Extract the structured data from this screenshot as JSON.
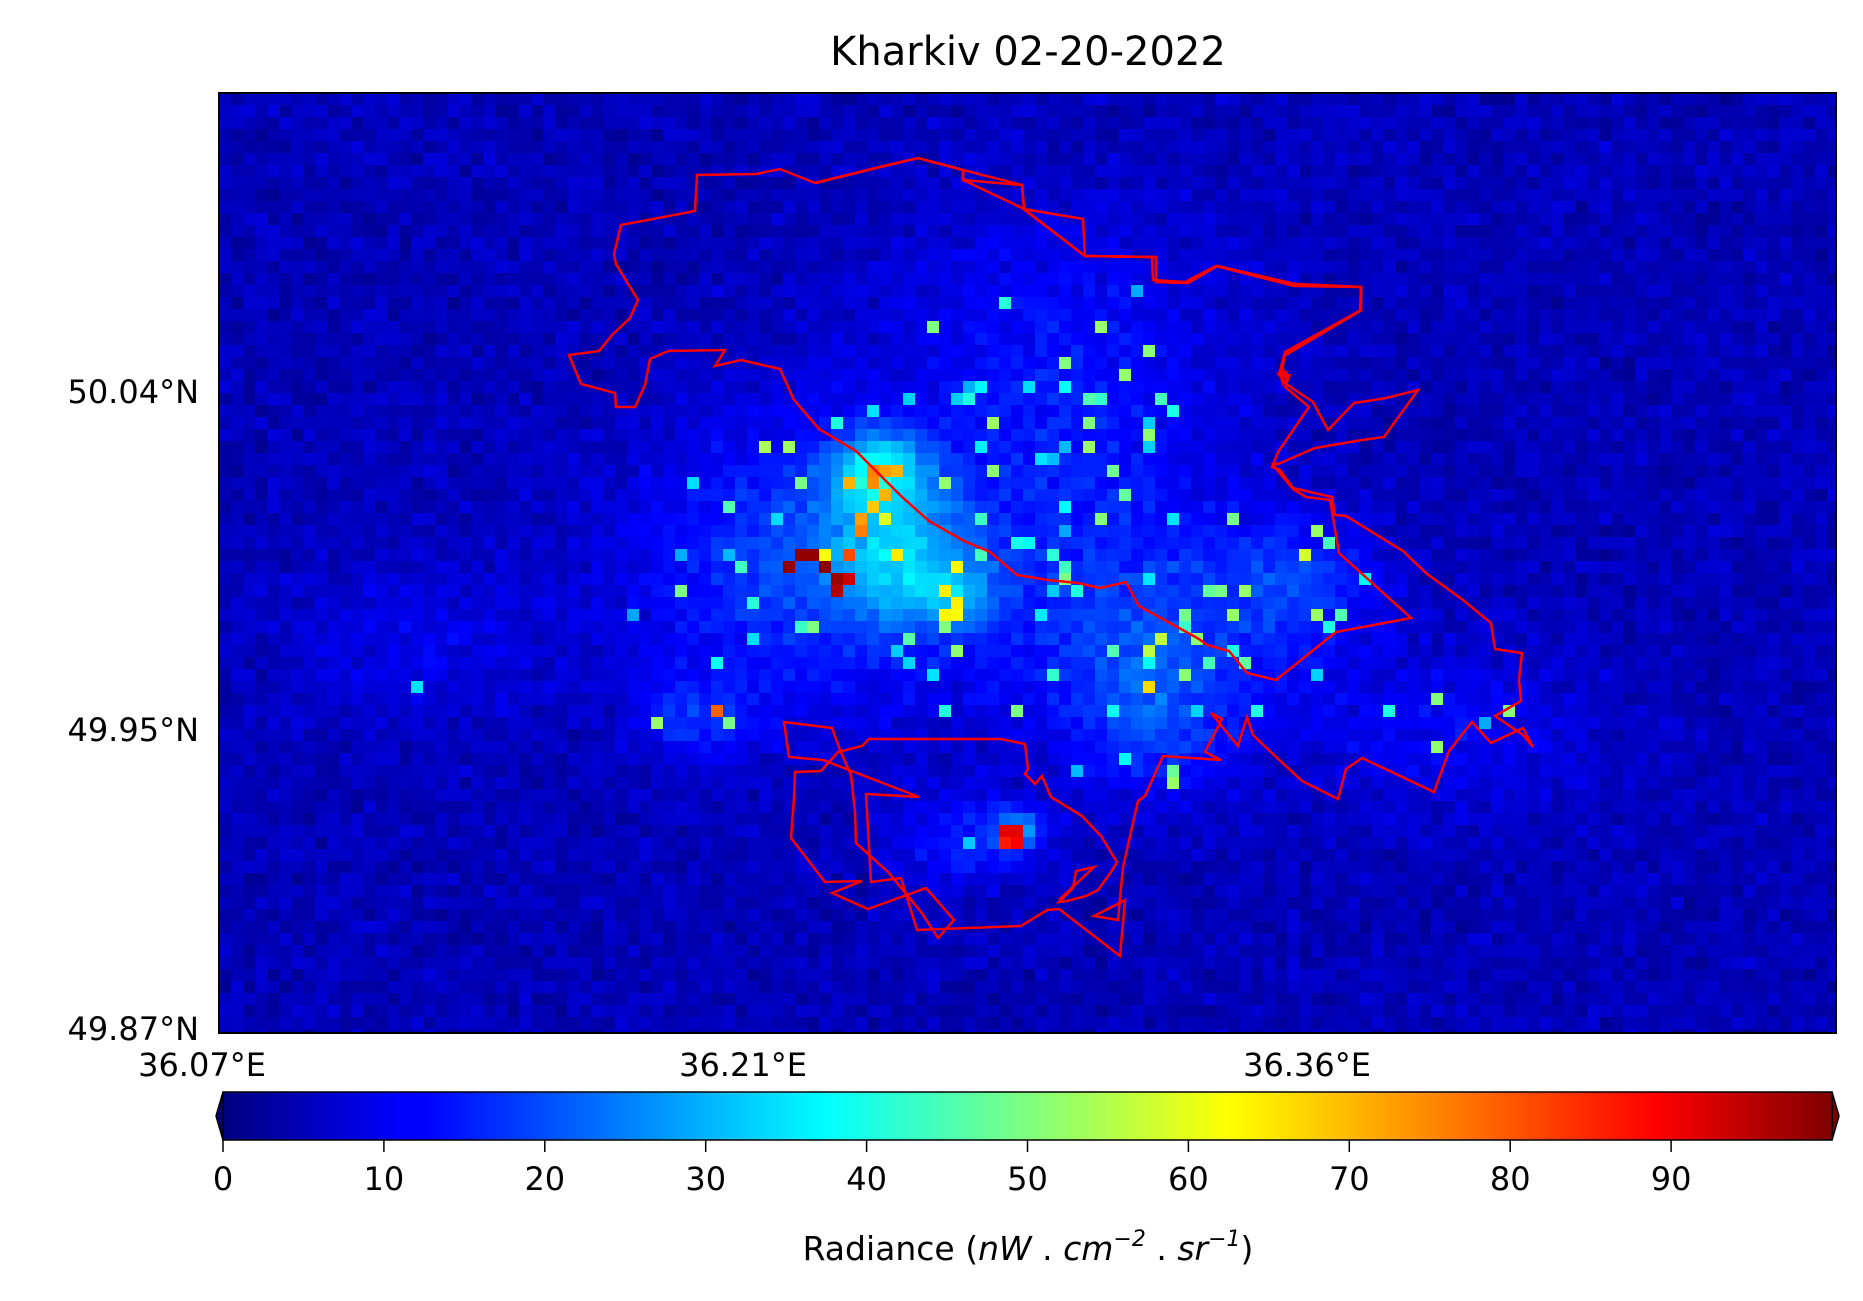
{
  "title": "Kharkiv 02-20-2022",
  "map": {
    "x_ticks": [
      "36.07°E",
      "36.21°E",
      "36.36°E"
    ],
    "y_ticks": [
      "50.04°N",
      "49.95°N",
      "49.87°N"
    ],
    "boundary_color": "#ff0000",
    "frame_color": "#000000"
  },
  "colorbar": {
    "colormap": "jet",
    "min": 0,
    "max": 100,
    "extend": "both",
    "ticks": [
      "0",
      "10",
      "20",
      "30",
      "40",
      "50",
      "60",
      "70",
      "80",
      "90"
    ],
    "tick_values": [
      0,
      10,
      20,
      30,
      40,
      50,
      60,
      70,
      80,
      90
    ],
    "label_prefix": "Radiance (",
    "label_nW": "nW",
    "label_sep1": " . ",
    "label_cm": "cm",
    "label_cm_exp": "−2",
    "label_sep2": " . ",
    "label_sr": "sr",
    "label_sr_exp": "−1",
    "label_suffix": ")"
  }
}
